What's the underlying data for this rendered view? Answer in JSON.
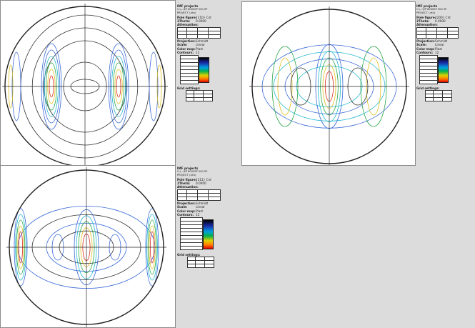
{
  "panels": [
    {
      "project_label": "IMF projects",
      "path": "C:\\...\\EP 8000SP 500 SP",
      "project": "PROJECT (.etx)",
      "pole_figure_label": "Pole figure:",
      "pole_figure": "{110} Cnt",
      "theta_label": "2Theta:",
      "theta": "0.0000",
      "attenuation_label": "Attenuation:",
      "projection_label": "Projection:",
      "projection": "Schmidt",
      "scale_label": "Scale:",
      "scale": "Linear",
      "colormap_label": "Color map:",
      "colormap": "Plast",
      "contours_label": "Contours:",
      "contours": "12",
      "grid_label": "Grid settings:"
    },
    {
      "project_label": "IMF projects",
      "path": "C:\\...\\EP 8000SP 500 SP",
      "project": "PROJECT (.etx)",
      "pole_figure_label": "Pole figure:",
      "pole_figure": "{200} Cnt",
      "theta_label": "2Theta:",
      "theta": "0.0000",
      "attenuation_label": "Attenuation:",
      "projection_label": "Projection:",
      "projection": "Schmidt",
      "scale_label": "Scale:",
      "scale": "Linear",
      "colormap_label": "Color map:",
      "colormap": "Plast",
      "contours_label": "Contours:",
      "contours": "12",
      "grid_label": "Grid settings:"
    },
    {
      "project_label": "IMF projects",
      "path": "C:\\...\\EP 8000SP 500 SP",
      "project": "PROJECT (.etx)",
      "pole_figure_label": "Pole figure:",
      "pole_figure": "{211} Cnt",
      "theta_label": "2Theta:",
      "theta": "0.0000",
      "attenuation_label": "Attenuation:",
      "projection_label": "Projection:",
      "projection": "Schmidt",
      "scale_label": "Scale:",
      "scale": "Linear",
      "colormap_label": "Color map:",
      "colormap": "Plast",
      "contours_label": "Contours:",
      "contours": "12",
      "grid_label": "Grid settings:"
    }
  ],
  "colors": {
    "background": "#dcdcdc",
    "panel": "#ffffff",
    "outer_circle": "#222222",
    "axes": "#222222",
    "contour_dark": "#333333",
    "contour_blue": "#3a6ad8",
    "contour_cyan": "#22b8d0",
    "contour_green": "#2aa84a",
    "contour_yellow": "#e0c020",
    "contour_red": "#d83020"
  }
}
